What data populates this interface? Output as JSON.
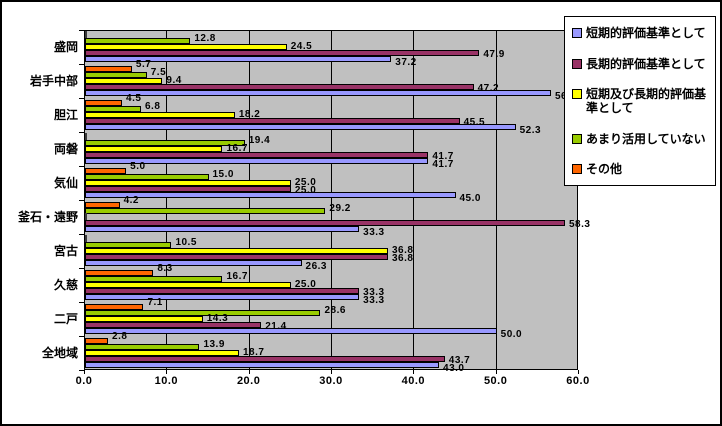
{
  "chart_data": {
    "type": "bar",
    "orientation": "horizontal",
    "title": "",
    "xlabel": "",
    "ylabel": "",
    "xlim": [
      0,
      60
    ],
    "x_tick_labels": [
      "0.0",
      "10.0",
      "20.0",
      "30.0",
      "40.0",
      "50.0",
      "60.0"
    ],
    "grid": true,
    "plot_bg": "#C0C0C0",
    "legend_position": "top-right",
    "value_labels": "one decimal, hidden for zero values",
    "categories": [
      "盛岡",
      "岩手中部",
      "胆江",
      "両磐",
      "気仙",
      "釜石・遠野",
      "宮古",
      "久慈",
      "二戸",
      "全地域"
    ],
    "series": [
      {
        "name": "短期的評価基準として",
        "color": "#9999FF",
        "values": [
          37.2,
          56.6,
          52.3,
          41.7,
          45.0,
          33.3,
          26.3,
          33.3,
          50.0,
          43.0
        ]
      },
      {
        "name": "長期的評価基準として",
        "color": "#993366",
        "values": [
          47.9,
          47.2,
          45.5,
          41.7,
          25.0,
          58.3,
          36.8,
          33.3,
          21.4,
          43.7
        ]
      },
      {
        "name": "短期及び長期的評価基準として",
        "color": "#FFFF00",
        "values": [
          24.5,
          9.4,
          18.2,
          16.7,
          25.0,
          0.0,
          36.8,
          25.0,
          14.3,
          18.7
        ]
      },
      {
        "name": "あまり活用していない",
        "color": "#99CC00",
        "values": [
          12.8,
          7.5,
          6.8,
          19.4,
          15.0,
          29.2,
          10.5,
          16.7,
          28.6,
          13.9
        ]
      },
      {
        "name": "その他",
        "color": "#FF6600",
        "values": [
          0.0,
          5.7,
          4.5,
          0.0,
          5.0,
          4.2,
          0.0,
          8.3,
          7.1,
          2.8
        ]
      }
    ]
  }
}
